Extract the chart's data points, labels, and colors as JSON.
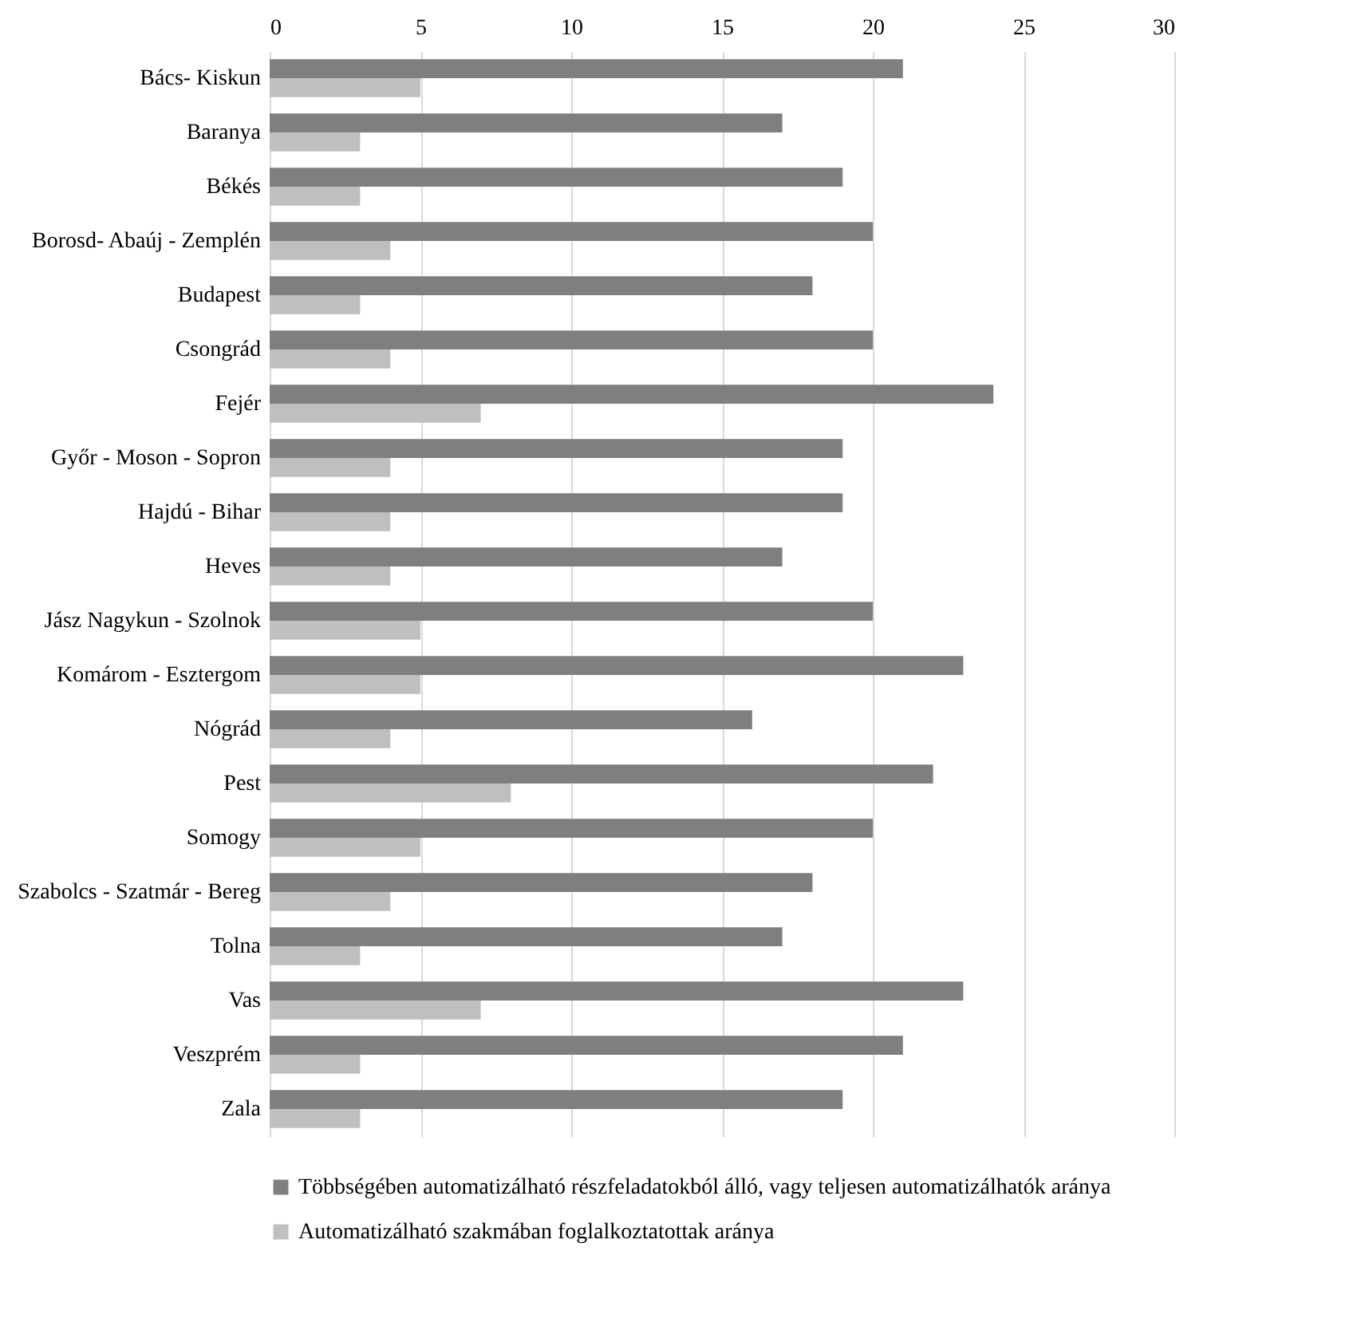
{
  "chart_data": {
    "type": "bar",
    "orientation": "horizontal",
    "categories": [
      "Bács- Kiskun",
      "Baranya",
      "Békés",
      "Borosd- Abaúj - Zemplén",
      "Budapest",
      "Csongrád",
      "Fejér",
      "Győr - Moson - Sopron",
      "Hajdú - Bihar",
      "Heves",
      "Jász Nagykun - Szolnok",
      "Komárom - Esztergom",
      "Nógrád",
      "Pest",
      "Somogy",
      "Szabolcs - Szatmár - Bereg",
      "Tolna",
      "Vas",
      "Veszprém",
      "Zala"
    ],
    "series": [
      {
        "name": "Többségében automatizálható részfeladatokból álló, vagy teljesen automatizálhatók aránya",
        "color": "#7f7f7f",
        "values": [
          21,
          17,
          19,
          20,
          18,
          20,
          24,
          19,
          19,
          17,
          20,
          23,
          16,
          22,
          20,
          18,
          17,
          23,
          21,
          19
        ]
      },
      {
        "name": "Automatizálható szakmában foglalkoztatottak aránya",
        "color": "#bfbfbf",
        "values": [
          5,
          3,
          3,
          4,
          3,
          4,
          7,
          4,
          4,
          4,
          5,
          5,
          4,
          8,
          5,
          4,
          3,
          7,
          3,
          3
        ]
      }
    ],
    "xlim": [
      0,
      30
    ],
    "xticks": [
      0,
      5,
      10,
      15,
      20,
      25,
      30
    ],
    "grid": "x",
    "legend": "bottom"
  }
}
